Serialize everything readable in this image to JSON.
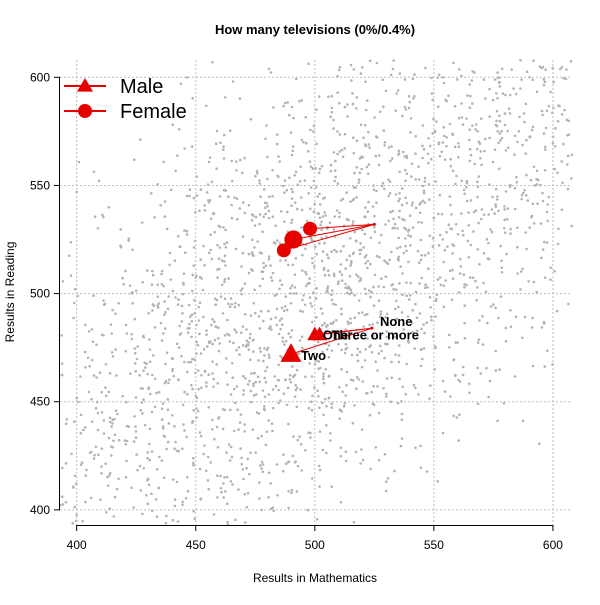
{
  "chart_data": {
    "type": "scatter",
    "title": "How many televisions (0%/0.4%)",
    "xlabel": "Results in Mathematics",
    "ylabel": "Results in Reading",
    "xlim": [
      393,
      608
    ],
    "ylim": [
      393,
      608
    ],
    "x_ticks": [
      400,
      450,
      500,
      550,
      600
    ],
    "y_ticks": [
      400,
      450,
      500,
      550,
      600
    ],
    "grid": true,
    "legend_position": "top-left",
    "background_points": {
      "description_color": "#b3b3b3",
      "count": 3000,
      "center": [
        500,
        500
      ]
    },
    "accent_color": "#e60000",
    "series": [
      {
        "name": "Male",
        "marker": "triangle",
        "points": [
          {
            "label": "None",
            "x": 524,
            "y": 484
          },
          {
            "label": "One",
            "x": 500,
            "y": 481
          },
          {
            "label": "Two",
            "x": 490,
            "y": 472
          },
          {
            "label": "Three or more",
            "x": 502,
            "y": 481
          }
        ]
      },
      {
        "name": "Female",
        "marker": "circle",
        "points": [
          {
            "label": "",
            "x": 525,
            "y": 532
          },
          {
            "label": "",
            "x": 498,
            "y": 530
          },
          {
            "label": "",
            "x": 491,
            "y": 525
          },
          {
            "label": "",
            "x": 487,
            "y": 520
          }
        ]
      }
    ],
    "annotations": [
      {
        "text": "None",
        "series": "Male",
        "point": 0
      },
      {
        "text": "One",
        "series": "Male",
        "point": 1
      },
      {
        "text": "Three or more",
        "series": "Male",
        "point": 3
      },
      {
        "text": "Two",
        "series": "Male",
        "point": 2
      }
    ]
  }
}
